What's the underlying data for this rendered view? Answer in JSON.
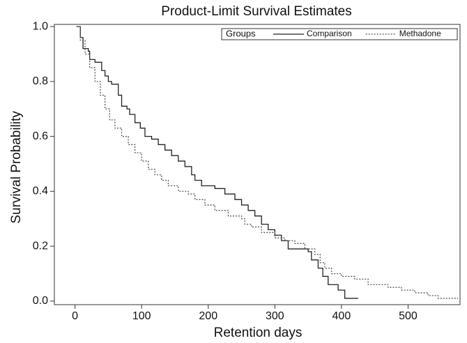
{
  "chart_data": {
    "type": "step",
    "title": "Product-Limit Survival Estimates",
    "x_label": "Retention days",
    "y_label": "Survival Probability",
    "legend_title": "Groups",
    "legend": "upper right",
    "xlim": [
      -31,
      578
    ],
    "ylim": [
      -0.013,
      1.008
    ],
    "xticks": [
      0,
      100,
      200,
      300,
      400,
      500
    ],
    "yticks": [
      {
        "value": 0,
        "label": "0.0"
      },
      {
        "value": 0.2,
        "label": "0.2"
      },
      {
        "value": 0.4,
        "label": "0.4"
      },
      {
        "value": 0.6,
        "label": "0.6"
      },
      {
        "value": 0.8,
        "label": "0.8"
      },
      {
        "value": 1,
        "label": "1.0"
      }
    ],
    "series": [
      {
        "name": "Comparison",
        "color": "#222222",
        "dash": "solid",
        "x": [
          2,
          8,
          12,
          20,
          22,
          30,
          40,
          45,
          50,
          55,
          65,
          70,
          78,
          82,
          90,
          98,
          105,
          115,
          125,
          135,
          145,
          155,
          165,
          175,
          180,
          190,
          210,
          225,
          240,
          250,
          260,
          270,
          280,
          290,
          300,
          310,
          320,
          350,
          355,
          365,
          372,
          380,
          395,
          405,
          425
        ],
        "values": [
          1.0,
          0.96,
          0.92,
          0.91,
          0.88,
          0.87,
          0.84,
          0.82,
          0.8,
          0.79,
          0.75,
          0.71,
          0.7,
          0.68,
          0.65,
          0.63,
          0.6,
          0.59,
          0.57,
          0.55,
          0.53,
          0.51,
          0.49,
          0.46,
          0.44,
          0.42,
          0.41,
          0.39,
          0.37,
          0.35,
          0.33,
          0.31,
          0.28,
          0.26,
          0.24,
          0.22,
          0.19,
          0.18,
          0.15,
          0.12,
          0.09,
          0.06,
          0.04,
          0.01,
          0.01
        ]
      },
      {
        "name": "Methadone",
        "color": "#555555",
        "dash": "dotted",
        "x": [
          2,
          8,
          15,
          22,
          30,
          38,
          45,
          52,
          60,
          70,
          80,
          90,
          100,
          110,
          120,
          130,
          140,
          155,
          170,
          180,
          195,
          210,
          230,
          250,
          255,
          265,
          280,
          300,
          315,
          330,
          345,
          360,
          368,
          375,
          385,
          400,
          420,
          440,
          470,
          490,
          510,
          530,
          545,
          575
        ],
        "values": [
          1.0,
          0.95,
          0.9,
          0.85,
          0.8,
          0.75,
          0.7,
          0.66,
          0.63,
          0.6,
          0.57,
          0.54,
          0.51,
          0.48,
          0.46,
          0.44,
          0.42,
          0.4,
          0.39,
          0.37,
          0.35,
          0.33,
          0.31,
          0.3,
          0.28,
          0.27,
          0.25,
          0.23,
          0.22,
          0.21,
          0.19,
          0.17,
          0.14,
          0.12,
          0.1,
          0.09,
          0.08,
          0.06,
          0.05,
          0.04,
          0.03,
          0.02,
          0.01,
          0.01
        ]
      }
    ]
  }
}
